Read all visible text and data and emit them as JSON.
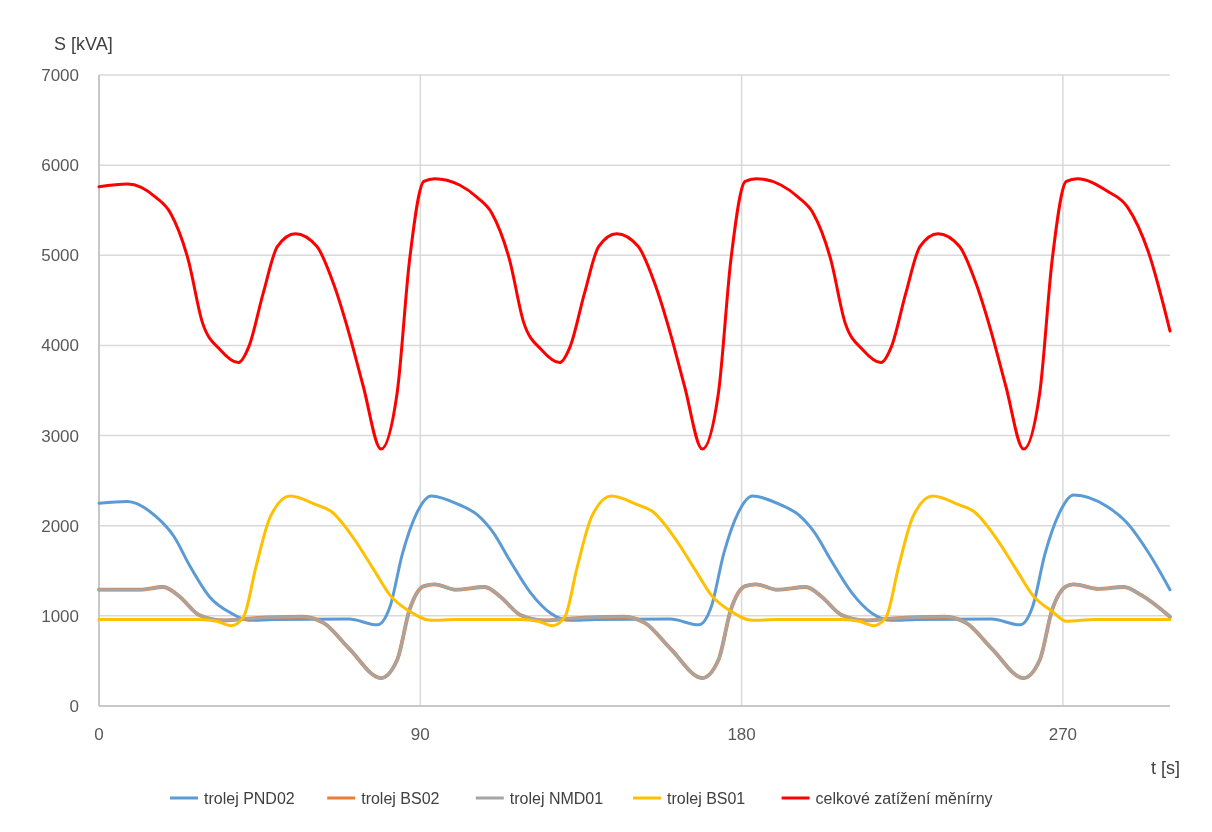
{
  "chart_data": {
    "type": "line",
    "xlabel": "t [s]",
    "ylabel": "S [kVA]",
    "xlim": [
      0,
      300
    ],
    "xticks": [
      0,
      90,
      180,
      270
    ],
    "ylim": [
      0,
      7000
    ],
    "yticks": [
      0,
      1000,
      2000,
      3000,
      4000,
      5000,
      6000,
      7000
    ],
    "grid": true,
    "legend": "bottom",
    "line_style": "solid",
    "marker": "none",
    "series": [
      {
        "name": "trolej PND02",
        "color": "#5b9bd5",
        "x": [
          0,
          8,
          16,
          21,
          25.5,
          31,
          37,
          42,
          49,
          70,
          78,
          81.5,
          85,
          89,
          93,
          101,
          106,
          110.5,
          115,
          121,
          126.5,
          132,
          139,
          160,
          168,
          171.5,
          175,
          179,
          183,
          191,
          196,
          200.5,
          205,
          211,
          216.5,
          222,
          229,
          250,
          258,
          261.5,
          265,
          269,
          273,
          282.5,
          288,
          294,
          300
        ],
        "values": [
          2250,
          2270,
          2100,
          1880,
          1550,
          1210,
          1030,
          950,
          960,
          965,
          900,
          1100,
          1690,
          2140,
          2330,
          2230,
          2120,
          1920,
          1620,
          1250,
          1030,
          950,
          960,
          965,
          900,
          1100,
          1690,
          2140,
          2330,
          2230,
          2120,
          1920,
          1620,
          1250,
          1030,
          950,
          960,
          965,
          900,
          1100,
          1690,
          2140,
          2340,
          2210,
          2030,
          1700,
          1290
        ]
      },
      {
        "name": "trolej BS02",
        "color": "#ed7d31",
        "x": [
          0,
          11.5,
          18,
          22.7,
          28,
          35,
          42,
          57,
          63,
          70,
          79,
          83.5,
          87,
          91,
          94,
          100,
          108,
          112.5,
          118,
          125,
          132,
          147,
          153,
          160,
          169,
          173.5,
          177,
          181,
          184,
          190,
          198,
          202.5,
          208,
          215,
          222,
          237,
          243,
          250,
          259,
          263.5,
          267,
          271,
          273,
          280,
          287,
          292,
          300
        ],
        "values": [
          1290,
          1290,
          1320,
          1210,
          1010,
          950,
          970,
          990,
          920,
          640,
          310,
          510,
          1070,
          1330,
          1350,
          1290,
          1320,
          1210,
          1010,
          950,
          970,
          990,
          920,
          640,
          310,
          510,
          1070,
          1330,
          1350,
          1290,
          1320,
          1210,
          1010,
          950,
          970,
          990,
          920,
          640,
          310,
          510,
          1070,
          1330,
          1350,
          1300,
          1320,
          1230,
          990
        ]
      },
      {
        "name": "trolej NMD01",
        "color": "#a5a5a5",
        "x": [
          0,
          11.5,
          18,
          22.7,
          28,
          35,
          42,
          57,
          63,
          70,
          79,
          83.5,
          87,
          91,
          94,
          100,
          108,
          112.5,
          118,
          125,
          132,
          147,
          153,
          160,
          169,
          173.5,
          177,
          181,
          184,
          190,
          198,
          202.5,
          208,
          215,
          222,
          237,
          243,
          250,
          259,
          263.5,
          267,
          271,
          273,
          280,
          287,
          292,
          300
        ],
        "values": [
          1290,
          1290,
          1320,
          1210,
          1010,
          950,
          970,
          990,
          920,
          640,
          310,
          510,
          1070,
          1330,
          1350,
          1290,
          1320,
          1210,
          1010,
          950,
          970,
          990,
          920,
          640,
          310,
          510,
          1070,
          1330,
          1350,
          1290,
          1320,
          1210,
          1010,
          950,
          970,
          990,
          920,
          640,
          310,
          510,
          1070,
          1330,
          1350,
          1300,
          1320,
          1230,
          990
        ]
      },
      {
        "name": "trolej BS01",
        "color": "#ffc000",
        "x": [
          0,
          28,
          33,
          37,
          40.5,
          44,
          48,
          53.5,
          61,
          65,
          71,
          77,
          81.5,
          87,
          93,
          100,
          118,
          123,
          127,
          130.5,
          134,
          138,
          143.5,
          151,
          155,
          161,
          167,
          171.5,
          177,
          183,
          190,
          208,
          213,
          217,
          220.5,
          224,
          228,
          233.5,
          241,
          245,
          251,
          257,
          261.5,
          267,
          271,
          279,
          300
        ],
        "values": [
          960,
          960,
          940,
          890,
          990,
          1550,
          2100,
          2330,
          2230,
          2160,
          1880,
          1510,
          1230,
          1050,
          950,
          960,
          960,
          940,
          890,
          990,
          1550,
          2100,
          2330,
          2230,
          2160,
          1880,
          1510,
          1230,
          1050,
          950,
          960,
          960,
          940,
          890,
          990,
          1550,
          2100,
          2330,
          2230,
          2160,
          1880,
          1510,
          1230,
          1050,
          940,
          960,
          960
        ]
      },
      {
        "name": "celkové zatížení měnírny",
        "color": "#ff0000",
        "x": [
          0,
          8,
          16,
          20,
          25,
          29,
          34,
          39,
          42,
          46,
          50,
          55,
          61,
          66,
          70,
          74,
          79,
          83.5,
          87,
          91,
          94,
          101,
          106,
          110,
          115,
          119,
          124,
          129,
          132,
          136,
          140,
          145,
          151,
          156,
          160,
          164,
          169,
          173.5,
          177,
          181,
          184,
          191,
          196,
          200,
          205,
          209,
          214,
          219,
          222,
          226,
          230,
          235,
          241,
          246,
          250,
          254,
          259,
          263.5,
          267,
          271,
          274,
          282.5,
          288,
          294,
          300
        ],
        "values": [
          5760,
          5790,
          5640,
          5470,
          4950,
          4250,
          3950,
          3810,
          3990,
          4580,
          5100,
          5240,
          5100,
          4650,
          4140,
          3550,
          2850,
          3470,
          4950,
          5820,
          5850,
          5780,
          5640,
          5470,
          4950,
          4250,
          3950,
          3810,
          3990,
          4580,
          5100,
          5240,
          5100,
          4650,
          4140,
          3550,
          2850,
          3470,
          4950,
          5820,
          5850,
          5780,
          5640,
          5470,
          4950,
          4250,
          3950,
          3810,
          3990,
          4580,
          5100,
          5240,
          5100,
          4650,
          4140,
          3550,
          2850,
          3470,
          4950,
          5820,
          5850,
          5710,
          5540,
          5030,
          4160
        ]
      }
    ]
  }
}
